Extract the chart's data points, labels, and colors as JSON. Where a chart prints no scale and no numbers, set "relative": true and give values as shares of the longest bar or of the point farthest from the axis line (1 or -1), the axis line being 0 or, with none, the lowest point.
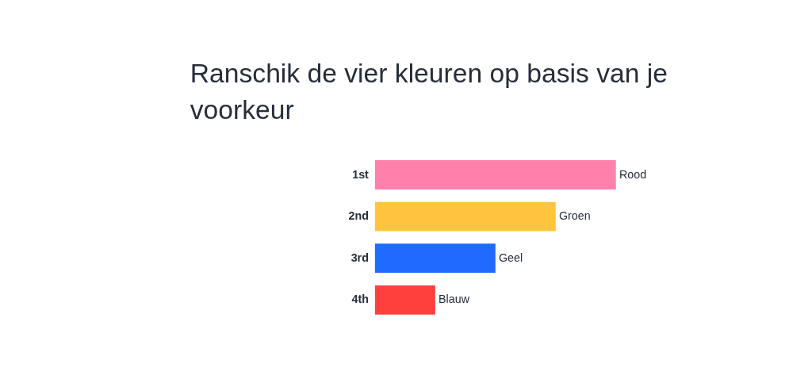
{
  "chart_data": {
    "type": "bar",
    "orientation": "horizontal",
    "relative": true,
    "title": "Ranschik de vier kleuren op basis van je voorkeur",
    "categories": [
      "1st",
      "2nd",
      "3rd",
      "4th"
    ],
    "values": [
      1,
      0.75,
      0.5,
      0.25
    ],
    "colors": [
      "#ff80ab",
      "#ffc43d",
      "#1f6bff",
      "#ff403d"
    ],
    "annotations": [
      {
        "text": "Rood",
        "x": 1,
        "y": "1st"
      },
      {
        "text": "Groen",
        "x": 0.75,
        "y": "2nd"
      },
      {
        "text": "Geel",
        "x": 0.5,
        "y": "3rd"
      },
      {
        "text": "Blauw",
        "x": 0.25,
        "y": "4th"
      }
    ]
  }
}
